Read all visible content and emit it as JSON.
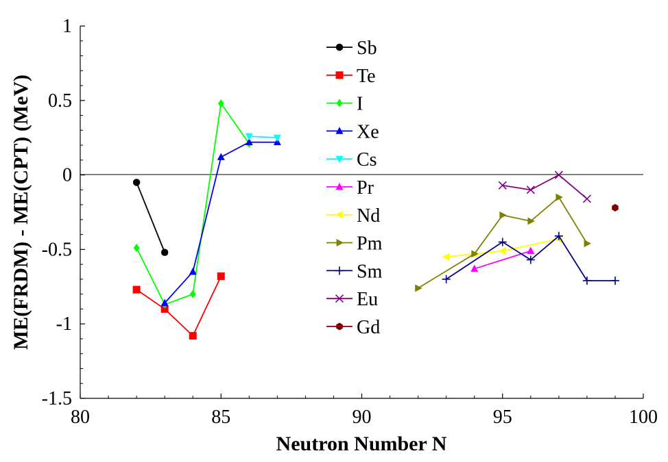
{
  "chart_data": {
    "type": "line",
    "title": "",
    "xlabel": "Neutron Number N",
    "ylabel": "ME(FRDM) - ME(CPT) (MeV)",
    "xlim": [
      80,
      100
    ],
    "ylim": [
      -1.5,
      1
    ],
    "xticks": [
      80,
      85,
      90,
      95,
      100
    ],
    "xtick_labels": [
      "80",
      "85",
      "90",
      "95",
      "100"
    ],
    "yticks": [
      1,
      0.5,
      0,
      -0.5,
      -1,
      -1.5
    ],
    "ytick_labels": [
      "1",
      "0.5",
      "0",
      "-0.5",
      "-1",
      "-1.5"
    ],
    "zero_line": true,
    "grid": false,
    "legend_position": "top-center",
    "series": [
      {
        "name": "Sb",
        "color": "#000000",
        "marker": "circle",
        "x": [
          82,
          83
        ],
        "y": [
          -0.05,
          -0.52
        ]
      },
      {
        "name": "Te",
        "color": "#ff0000",
        "marker": "square",
        "x": [
          82,
          83,
          84,
          85
        ],
        "y": [
          -0.77,
          -0.9,
          -1.08,
          -0.68
        ]
      },
      {
        "name": "I",
        "color": "#00ff00",
        "marker": "diamond",
        "x": [
          82,
          83,
          84,
          85,
          86
        ],
        "y": [
          -0.49,
          -0.87,
          -0.8,
          0.48,
          0.21
        ]
      },
      {
        "name": "Xe",
        "color": "#0000ff",
        "marker": "triangle-up",
        "x": [
          83,
          84,
          85,
          86,
          87
        ],
        "y": [
          -0.86,
          -0.65,
          0.12,
          0.22,
          0.22
        ]
      },
      {
        "name": "Cs",
        "color": "#00ffff",
        "marker": "triangle-down",
        "x": [
          86,
          87
        ],
        "y": [
          0.26,
          0.25
        ]
      },
      {
        "name": "Pr",
        "color": "#ff00ff",
        "marker": "triangle-up",
        "x": [
          94,
          96
        ],
        "y": [
          -0.63,
          -0.51
        ]
      },
      {
        "name": "Nd",
        "color": "#ffff00",
        "marker": "triangle-left",
        "x": [
          93,
          94,
          95,
          97
        ],
        "y": [
          -0.55,
          -0.53,
          -0.51,
          -0.43
        ]
      },
      {
        "name": "Pm",
        "color": "#808000",
        "marker": "triangle-right",
        "x": [
          92,
          94,
          95,
          96,
          97,
          98
        ],
        "y": [
          -0.76,
          -0.53,
          -0.27,
          -0.31,
          -0.15,
          -0.46
        ]
      },
      {
        "name": "Sm",
        "color": "#000080",
        "marker": "plus",
        "x": [
          93,
          95,
          96,
          97,
          98,
          99
        ],
        "y": [
          -0.7,
          -0.45,
          -0.57,
          -0.41,
          -0.71,
          -0.71
        ]
      },
      {
        "name": "Eu",
        "color": "#800080",
        "marker": "x",
        "x": [
          95,
          96,
          97,
          98
        ],
        "y": [
          -0.07,
          -0.1,
          0.0,
          -0.16
        ]
      },
      {
        "name": "Gd",
        "color": "#800000",
        "marker": "hexagon",
        "x": [
          99
        ],
        "y": [
          -0.22
        ]
      }
    ]
  }
}
